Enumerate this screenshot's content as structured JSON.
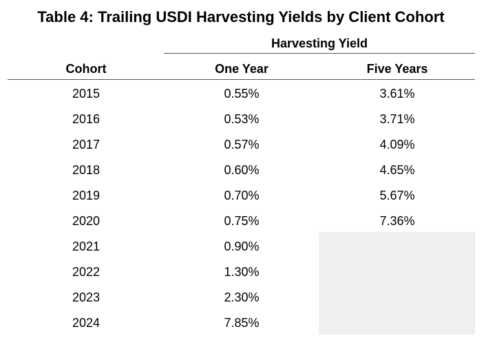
{
  "table": {
    "title": "Table 4: Trailing USDI Harvesting Yields by Client Cohort",
    "group_header": "Harvesting Yield",
    "columns": {
      "cohort": "Cohort",
      "one_year": "One Year",
      "five_years": "Five Years"
    },
    "rows": [
      {
        "cohort": "2015",
        "one_year": "0.55%",
        "five_years": "3.61%"
      },
      {
        "cohort": "2016",
        "one_year": "0.53%",
        "five_years": "3.71%"
      },
      {
        "cohort": "2017",
        "one_year": "0.57%",
        "five_years": "4.09%"
      },
      {
        "cohort": "2018",
        "one_year": "0.60%",
        "five_years": "4.65%"
      },
      {
        "cohort": "2019",
        "one_year": "0.70%",
        "five_years": "5.67%"
      },
      {
        "cohort": "2020",
        "one_year": "0.75%",
        "five_years": "7.36%"
      },
      {
        "cohort": "2021",
        "one_year": "0.90%",
        "five_years": ""
      },
      {
        "cohort": "2022",
        "one_year": "1.30%",
        "five_years": ""
      },
      {
        "cohort": "2023",
        "one_year": "2.30%",
        "five_years": ""
      },
      {
        "cohort": "2024",
        "one_year": "7.85%",
        "five_years": ""
      }
    ],
    "shade_color": "#efefef"
  }
}
